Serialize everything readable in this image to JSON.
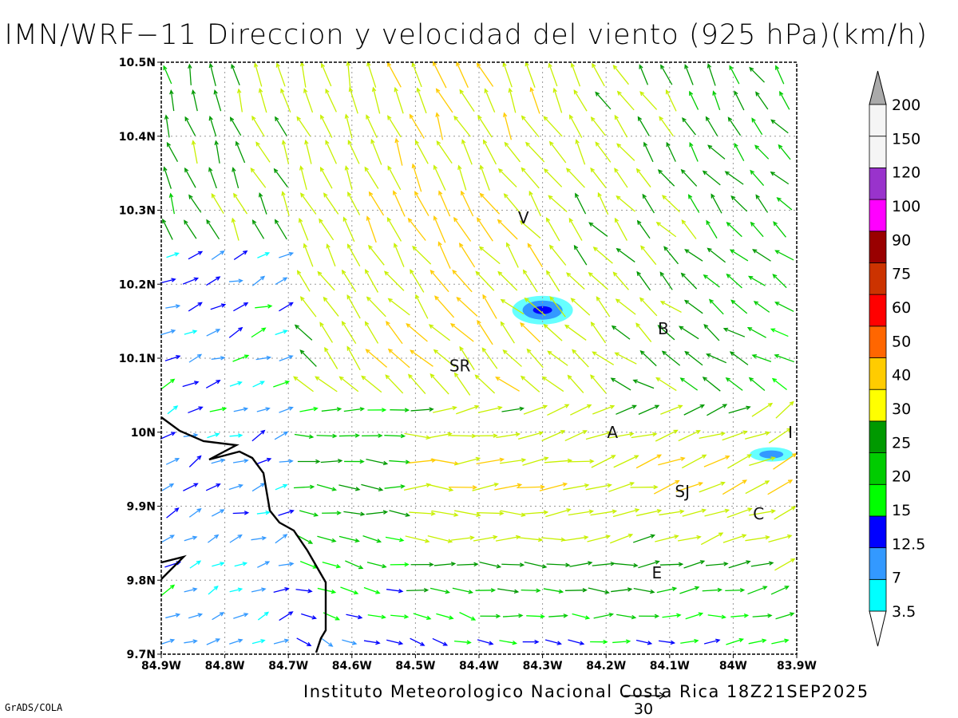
{
  "title": "IMN/WRF−11 Direccion y velocidad del viento (925 hPa)(km/h)",
  "footer": "Instituto Meteorologico Nacional Costa Rica 18Z21SEP2025",
  "credit": "GrADS/COLA",
  "reference_vector": {
    "label": "30",
    "value": 30,
    "unit": "km/h"
  },
  "map": {
    "lon_range": [
      -84.9,
      -83.9
    ],
    "lat_range": [
      9.7,
      10.5
    ],
    "lon_ticks": [
      "84.9W",
      "84.8W",
      "84.7W",
      "84.6W",
      "84.5W",
      "84.4W",
      "84.3W",
      "84.2W",
      "84.1W",
      "84W",
      "83.9W"
    ],
    "lat_ticks": [
      "9.7N",
      "9.8N",
      "9.9N",
      "10N",
      "10.1N",
      "10.2N",
      "10.3N",
      "10.4N",
      "10.5N"
    ],
    "grid": "dotted"
  },
  "places": [
    {
      "label": "V",
      "lon": -84.33,
      "lat": 10.29
    },
    {
      "label": "SR",
      "lon": -84.43,
      "lat": 10.09
    },
    {
      "label": "B",
      "lon": -84.11,
      "lat": 10.14
    },
    {
      "label": "A",
      "lon": -84.19,
      "lat": 10.0
    },
    {
      "label": "I",
      "lon": -83.91,
      "lat": 10.0
    },
    {
      "label": "SJ",
      "lon": -84.08,
      "lat": 9.92
    },
    {
      "label": "C",
      "lon": -83.96,
      "lat": 9.89
    },
    {
      "label": "E",
      "lon": -84.12,
      "lat": 9.81
    }
  ],
  "colorbar": {
    "labels": [
      "3.5",
      "7",
      "12.5",
      "15",
      "20",
      "25",
      "30",
      "40",
      "50",
      "60",
      "75",
      "90",
      "100",
      "120",
      "150",
      "200"
    ],
    "colors": [
      "#00ffff",
      "#3399ff",
      "#0000ff",
      "#00ff00",
      "#00cc00",
      "#009900",
      "#ffff00",
      "#ffcc00",
      "#ff6600",
      "#ff0000",
      "#cc3300",
      "#990000",
      "#ff00ff",
      "#9933cc",
      "#f5f5f5",
      "#aaaaaa"
    ]
  },
  "shaded_areas": [
    {
      "name": "poas-max",
      "lon": -84.3,
      "lat": 10.165,
      "speed": "12.5"
    },
    {
      "name": "east-max",
      "lon": -83.94,
      "lat": 9.97,
      "speed": "7"
    }
  ]
}
